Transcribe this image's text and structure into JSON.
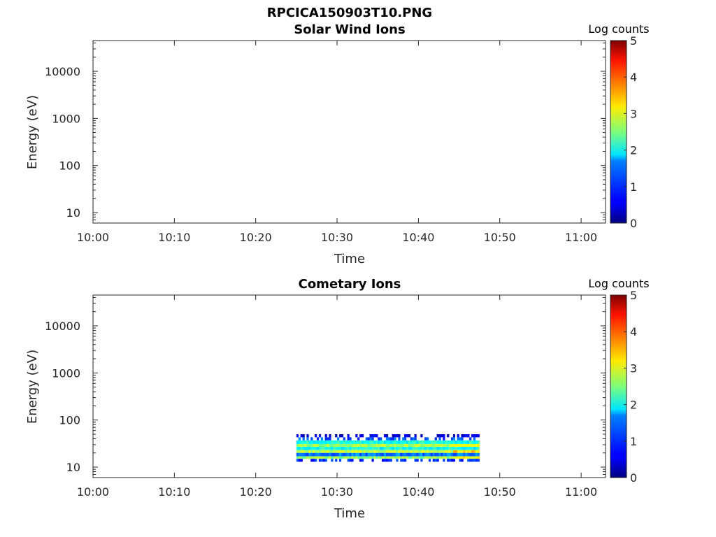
{
  "figure": {
    "title": "RPCICA150903T10.PNG"
  },
  "chart_data": [
    {
      "type": "heatmap",
      "title": "Solar Wind Ions",
      "xlabel": "Time",
      "ylabel": "Energy (eV)",
      "x_ticks": [
        "10:00",
        "10:10",
        "10:20",
        "10:30",
        "10:40",
        "10:50",
        "11:00"
      ],
      "xlim_minutes": [
        0,
        63
      ],
      "y_scale": "log",
      "y_ticks": [
        "10",
        "100",
        "1000",
        "10000"
      ],
      "ylim": [
        6,
        45000
      ],
      "colorbar": {
        "label": "Log counts",
        "ticks": [
          "0",
          "1",
          "2",
          "3",
          "4",
          "5"
        ],
        "range": [
          0,
          5
        ],
        "colormap": "jet"
      },
      "data": []
    },
    {
      "type": "heatmap",
      "title": "Cometary Ions",
      "xlabel": "Time",
      "ylabel": "Energy (eV)",
      "x_ticks": [
        "10:00",
        "10:10",
        "10:20",
        "10:30",
        "10:40",
        "10:50",
        "11:00"
      ],
      "xlim_minutes": [
        0,
        63
      ],
      "y_scale": "log",
      "y_ticks": [
        "10",
        "100",
        "1000",
        "10000"
      ],
      "ylim": [
        6,
        45000
      ],
      "colorbar": {
        "label": "Log counts",
        "ticks": [
          "0",
          "1",
          "2",
          "3",
          "4",
          "5"
        ],
        "range": [
          0,
          5
        ],
        "colormap": "jet"
      },
      "data": {
        "time_range": [
          "10:25",
          "10:47.5"
        ],
        "energy_bins": [
          {
            "energy_range": [
              43,
              50
            ],
            "log_counts": 0.5
          },
          {
            "energy_range": [
              37,
              43
            ],
            "log_counts": 1.0
          },
          {
            "energy_range": [
              31,
              37
            ],
            "log_counts": 2.0
          },
          {
            "energy_range": [
              27,
              31
            ],
            "log_counts": 2.7
          },
          {
            "energy_range": [
              23,
              27
            ],
            "log_counts": 2.0
          },
          {
            "energy_range": [
              20,
              23
            ],
            "log_counts": 2.8
          },
          {
            "energy_range": [
              17,
              20
            ],
            "log_counts": 1.2
          },
          {
            "energy_range": [
              15,
              17
            ],
            "log_counts": 2.6
          },
          {
            "energy_range": [
              13,
              15
            ],
            "log_counts": 0.8
          }
        ]
      }
    }
  ]
}
